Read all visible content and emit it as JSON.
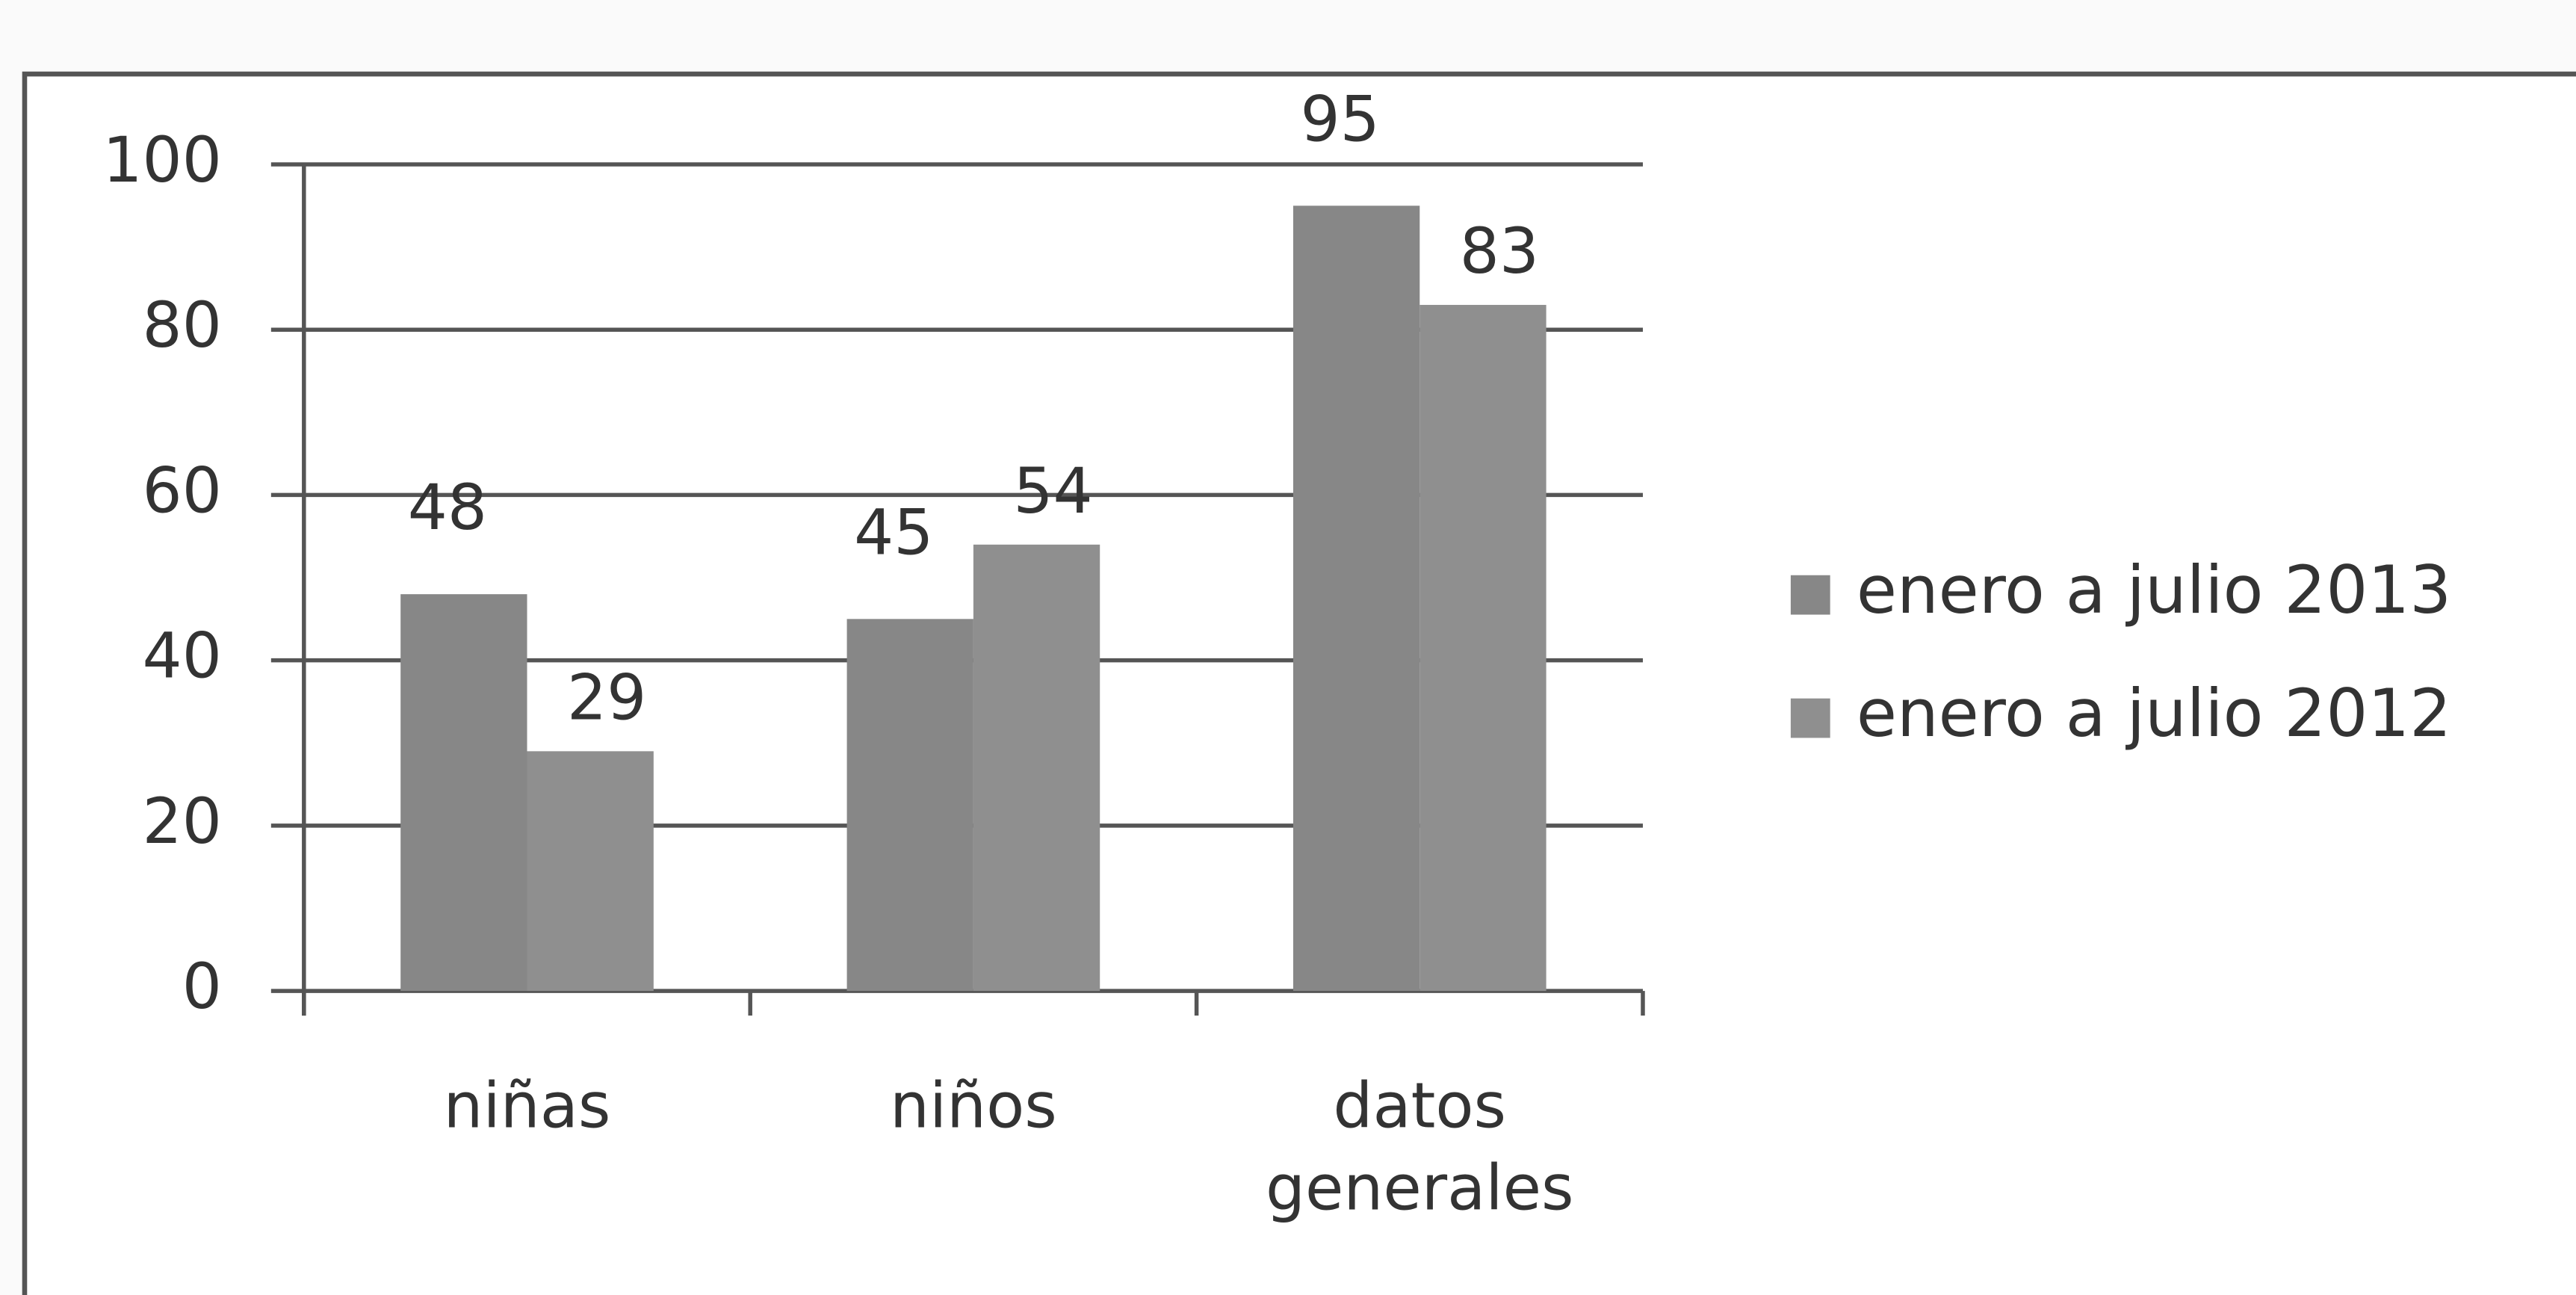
{
  "chart_data": {
    "type": "bar",
    "categories": [
      "niñas",
      "niños",
      "datos generales"
    ],
    "series": [
      {
        "name": "enero a julio 2013",
        "color": "#878787",
        "values": [
          48,
          45,
          95
        ]
      },
      {
        "name": "enero a julio 2012",
        "color": "#8f8f8f",
        "values": [
          29,
          54,
          83
        ]
      }
    ],
    "ylim": [
      0,
      100
    ],
    "yticks": [
      0,
      20,
      40,
      60,
      80,
      100
    ],
    "grid": true,
    "legend": "right"
  }
}
